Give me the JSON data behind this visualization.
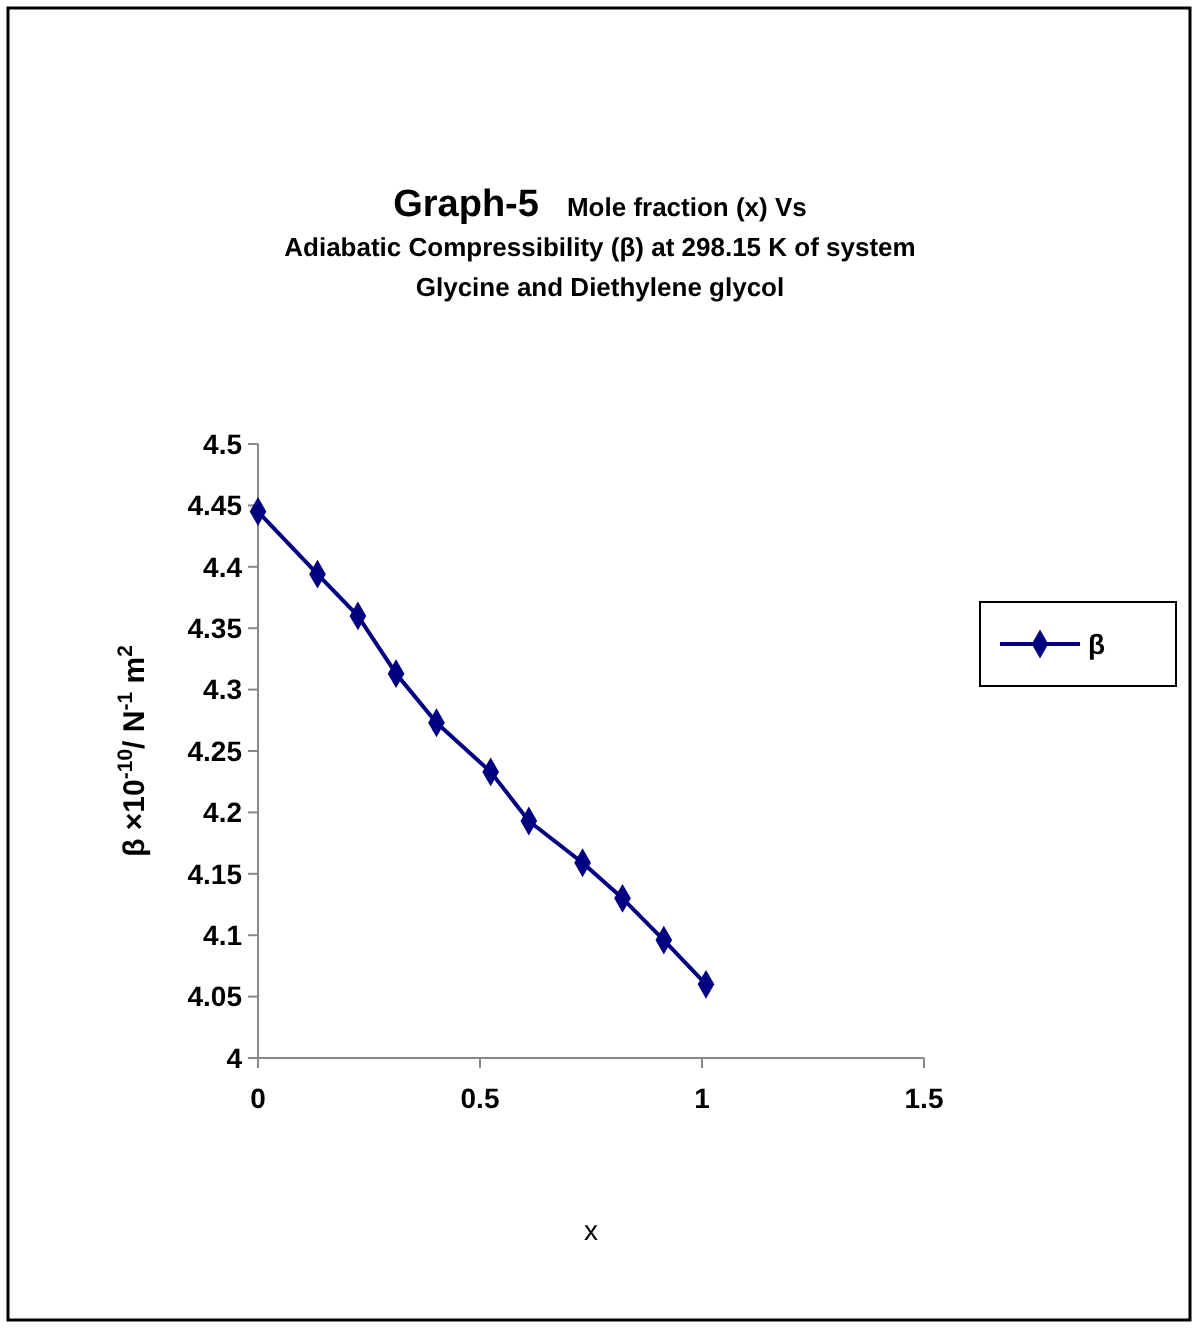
{
  "chart_data": {
    "type": "line",
    "title": "Graph-5",
    "subtitle": "Mole fraction (x) Vs Adiabatic Compressibility (β) at 298.15 K of system Glycine and  Diethylene  glycol",
    "xlabel": "x",
    "ylabel": "β ×10$^{-10}$/ N$^{-1}$ m$^{2}$",
    "x": [
      0,
      0.134,
      0.225,
      0.311,
      0.402,
      0.524,
      0.61,
      0.731,
      0.821,
      0.914,
      1.009
    ],
    "series": [
      {
        "name": "β",
        "color": "#000080",
        "values": [
          4.445,
          4.394,
          4.36,
          4.313,
          4.273,
          4.233,
          4.193,
          4.159,
          4.13,
          4.096,
          4.06
        ]
      }
    ],
    "xlim": [
      0,
      1.5
    ],
    "xticks": [
      0,
      0.5,
      1,
      1.5
    ],
    "ylim": [
      4,
      4.5
    ],
    "yticks": [
      4,
      4.05,
      4.1,
      4.15,
      4.2,
      4.25,
      4.3,
      4.35,
      4.4,
      4.45,
      4.5
    ],
    "marker": "diamond",
    "line_style": "solid",
    "legend": "right",
    "grid": false
  }
}
